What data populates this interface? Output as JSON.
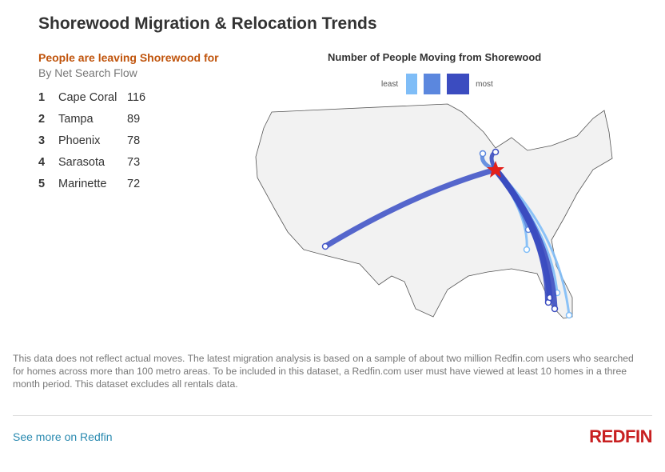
{
  "title": "Shorewood Migration & Relocation Trends",
  "subtitle": "People are leaving Shorewood for",
  "subtitle2": "By Net Search Flow",
  "destinations": [
    {
      "rank": "1",
      "city": "Cape Coral",
      "value": "116"
    },
    {
      "rank": "2",
      "city": "Tampa",
      "value": "89"
    },
    {
      "rank": "3",
      "city": "Phoenix",
      "value": "78"
    },
    {
      "rank": "4",
      "city": "Sarasota",
      "value": "73"
    },
    {
      "rank": "5",
      "city": "Marinette",
      "value": "72"
    }
  ],
  "chart_data": {
    "type": "flow-map",
    "title": "Number of People Moving from Shorewood",
    "origin": "Shorewood",
    "legend": {
      "least": "least",
      "most": "most",
      "colors": [
        "#7fbdf7",
        "#5b87de",
        "#3b4cc0"
      ]
    }
  },
  "note": "This data does not reflect actual moves. The latest migration analysis is based on a sample of about two million Redfin.com users who searched for homes across more than 100 metro areas. To be included in this dataset, a Redfin.com user must have viewed at least 10 homes in a three month period. This dataset excludes all rentals data.",
  "link": "See more on Redfin",
  "logo": "REDFIN"
}
